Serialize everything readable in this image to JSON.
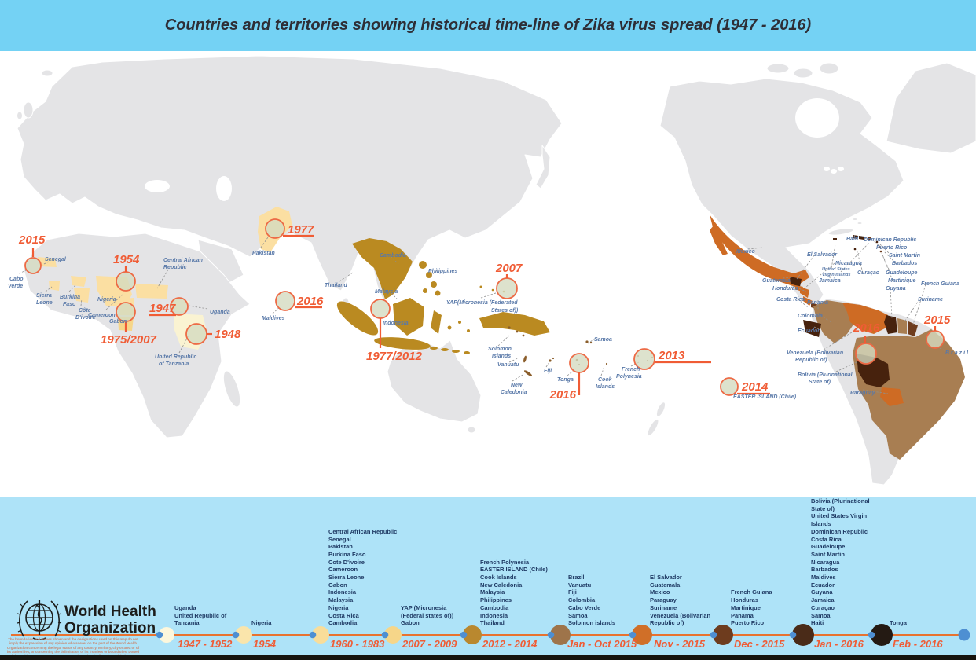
{
  "title": "Countries and territories showing historical time-line of Zika virus spread (1947 - 2016)",
  "who": {
    "name_line1": "World Health",
    "name_line2": "Organization",
    "disclaimer": "The boundaries and names shown and the designations used on this map do not imply the expression of any opinion whatsoever on the part of the World Health Organization concerning the legal status of any country, territory, city or area or of its authorities, or concerning the delimitation of its frontiers or boundaries. Dotted and dashed lines on maps represent approximate border lines for which there may not yet be full agreement."
  },
  "colors": {
    "title_bar": "#74D2F4",
    "bottom_panel": "#AEE3F8",
    "accent_orange": "#F05C35",
    "timeline_line": "#E8722F",
    "country_label_blue": "#5878A8",
    "land_gray": "#E4E4E6",
    "marker_fill": "#D5DBC0",
    "marker_ring": "#ED6A45",
    "timeline_dot_blue": "#4E8FD2",
    "stage_1947_1952": "#FAF3D2",
    "stage_1954_1983": "#FBDFA2",
    "stage_2007_2009": "#F6D689",
    "stage_2012_2014": "#BA8A21",
    "stage_jan_oct_2015": "#A87E52",
    "stage_nov_2015": "#CE6B24",
    "stage_dec_2015": "#6E3C1E",
    "stage_jan_2016": "#47220D",
    "stage_feb_2016": "#241A13"
  },
  "map": {
    "years": {
      "cabo_verde": "2015",
      "nigeria": "1954",
      "uganda": "1947",
      "tanzania": "1948",
      "gabon": "1975/2007",
      "pakistan": "1977",
      "maldives": "2016",
      "indonesia": "1977/2012",
      "yap": "2007",
      "tonga": "2016",
      "french_polynesia": "2013",
      "easter_island": "2014",
      "bolivia": "2016",
      "brazil": "2015"
    },
    "labels": {
      "senegal": "Senegal",
      "cabo_verde": [
        "Cabo",
        "Verde"
      ],
      "sierra_leone": [
        "Sierra",
        "Leone"
      ],
      "burkina_faso": [
        "Burkina",
        "Faso"
      ],
      "cote_divoire": [
        "Côte",
        "D'ivoire"
      ],
      "cameroon": "Cameroon",
      "gabon": "Gabon",
      "nigeria": "Nigeria",
      "central_african_republic": [
        "Central African",
        "Republic"
      ],
      "uganda": "Uganda",
      "tanzania": [
        "United Republic",
        "of Tanzania"
      ],
      "pakistan": "Pakistan",
      "maldives": "Maldives",
      "thailand": "Thailand",
      "cambodia": "Cambodia",
      "malaysia": "Malaysia",
      "philippines": "Philippines",
      "indonesia": "Indonesia",
      "yap": [
        "YAP(Micronesia (Federated",
        "States of))"
      ],
      "solomon_islands": [
        "Solomon",
        "Islands"
      ],
      "vanuatu": "Vanuatu",
      "new_caledonia": [
        "New",
        "Caledonia"
      ],
      "fiji": "Fiji",
      "tonga": "Tonga",
      "samoa": "Samoa",
      "cook_islands": [
        "Cook",
        "Islands"
      ],
      "french_polynesia": [
        "French",
        "Polynesia"
      ],
      "mexico": "Mexico",
      "el_salvador": "El Salvador",
      "haiti": "Haiti",
      "dominican_republic": "Dominican Republic",
      "puerto_rico": "Puerto Rico",
      "saint_martin": "Saint Martin",
      "barbados": "Barbados",
      "nicaragua": "Nicaragua",
      "usvi": [
        "United States",
        "Virgin Islands"
      ],
      "jamaica": "Jamaica",
      "curacao": "Curaçao",
      "guadeloupe": "Guadeloupe",
      "martinique": "Martinique",
      "guatemala": "Guatemala",
      "honduras": "Honduras",
      "costa_rica": "Costa Rica",
      "panama": "Panama",
      "colombia": "Colombia",
      "ecuador": "Ecuador",
      "guyana": "Guyana",
      "french_guiana": "French Guiana",
      "suriname": "Suriname",
      "venezuela": [
        "Venezuela (Bolivarian",
        "Republic of)"
      ],
      "bolivia": [
        "Bolivia (Plurinational",
        "State of)"
      ],
      "paraguay": "Paraguay",
      "easter_island": "EASTER ISLAND (Chile)",
      "brazil": "Brazil"
    }
  },
  "timeline": {
    "entries": [
      {
        "date": "1947 - 1952",
        "color": "#FDF7DC",
        "countries": [
          "Uganda",
          "United Republic of Tanzania"
        ]
      },
      {
        "date": "1954",
        "color": "#FAE5AB",
        "countries": [
          "Nigeria"
        ]
      },
      {
        "date": "1960 - 1983",
        "color": "#F9DD99",
        "countries": [
          "Central African Republic",
          "Senegal",
          "Pakistan",
          "Burkina Faso",
          "Cote D'ivoire",
          "Cameroon",
          "Sierra Leone",
          "Gabon",
          "Indonesia",
          "Malaysia",
          "Nigeria",
          "Costa Rica",
          "Cambodia"
        ]
      },
      {
        "date": "2007 - 2009",
        "color": "#F6D689",
        "countries": [
          "YAP (Micronesia (Federal states of))",
          "Gabon"
        ]
      },
      {
        "date": "2012 - 2014",
        "color": "#B9882F",
        "countries": [
          "French Polynesia",
          "EASTER ISLAND (Chile)",
          "Cook Islands",
          "New Caledonia",
          "Malaysia",
          "Philippines",
          "Cambodia",
          "Indonesia",
          "Thailand"
        ]
      },
      {
        "date": "Jan - Oct 2015",
        "color": "#9E744A",
        "countries": [
          "Brazil",
          "Vanuatu",
          "Fiji",
          "Colombia",
          "Cabo Verde",
          "Samoa",
          "Solomon islands"
        ]
      },
      {
        "date": "Nov - 2015",
        "color": "#D06F28",
        "countries": [
          "El Salvador",
          "Guatemala",
          "Mexico",
          "Paraguay",
          "Suriname",
          "Venezuela (Bolivarian Republic of)"
        ]
      },
      {
        "date": "Dec - 2015",
        "color": "#6E3C1E",
        "countries": [
          "French Guiana",
          "Honduras",
          "Martinique",
          "Panama",
          "Puerto Rico"
        ]
      },
      {
        "date": "Jan - 2016",
        "color": "#4A2B18",
        "countries": [
          "Bolivia (Plurinational State of)",
          "United States Virgin Islands",
          "Dominican Republic",
          "Costa Rica",
          "Guadeloupe",
          "Saint Martin",
          "Nicaragua",
          "Barbados",
          "Maldives",
          "Ecuador",
          "Guyana",
          "Jamaica",
          "Curaçao",
          "Samoa",
          "Haiti"
        ]
      },
      {
        "date": "Feb - 2016",
        "color": "#241A13",
        "countries": [
          "Tonga"
        ]
      }
    ]
  }
}
